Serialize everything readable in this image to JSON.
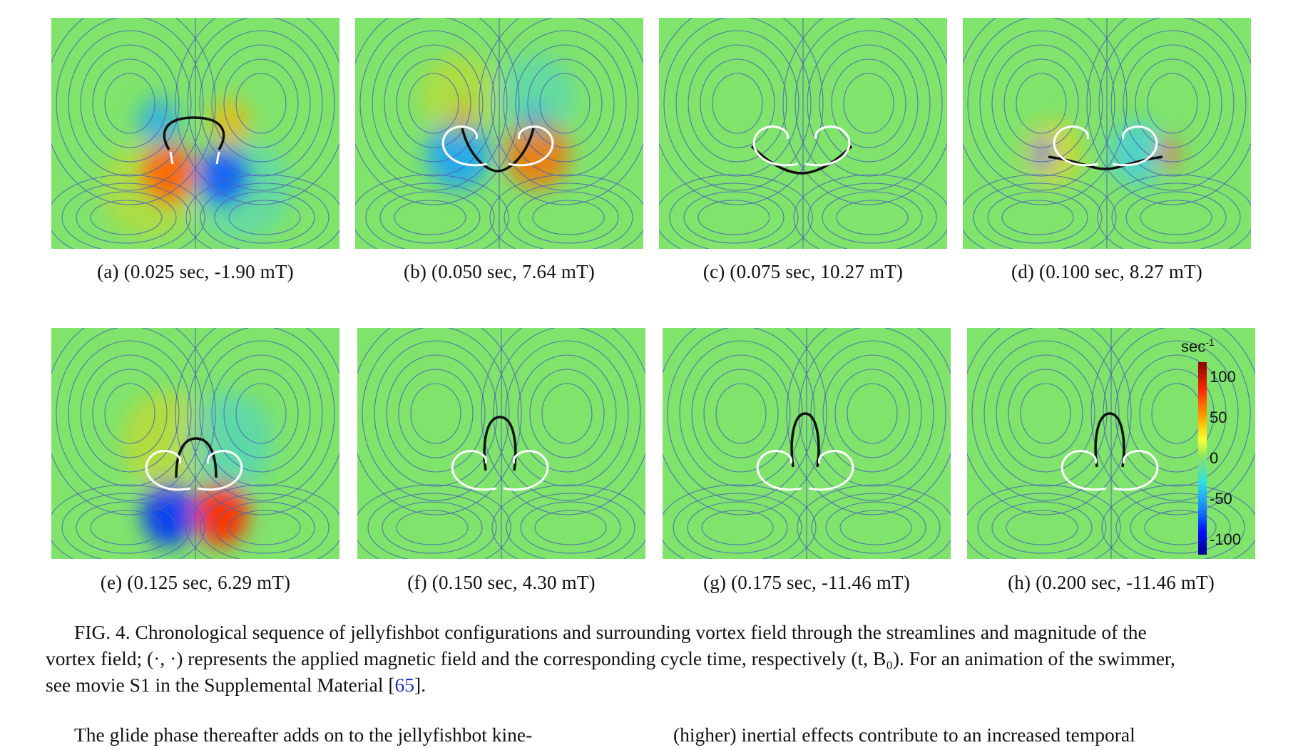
{
  "panels": [
    {
      "label": "(a) (0.025 sec, -1.90 mT)"
    },
    {
      "label": "(b) (0.050 sec, 7.64 mT)"
    },
    {
      "label": "(c) (0.075 sec, 10.27 mT)"
    },
    {
      "label": "(d) (0.100 sec, 8.27 mT)"
    },
    {
      "label": "(e) (0.125 sec, 6.29 mT)"
    },
    {
      "label": "(f) (0.150 sec, 4.30 mT)"
    },
    {
      "label": "(g) (0.175 sec, -11.46 mT)"
    },
    {
      "label": "(h) (0.200 sec, -11.46 mT)"
    }
  ],
  "colorbar": {
    "unit": "sec",
    "unit_exp": "-1",
    "ticks": [
      "100",
      "50",
      "0",
      "-50",
      "-100"
    ]
  },
  "caption": {
    "line1": "FIG. 4.  Chronological sequence of jellyfishbot configurations and surrounding vortex field through the streamlines and magnitude of the",
    "line2": "vortex field; (·, ·) represents the applied magnetic field and the corresponding cycle time, respectively (t, B₀). For an animation of the swimmer,",
    "line3_pre": "see movie S1 in the Supplemental Material [",
    "line3_ref": "65",
    "line3_post": "]."
  },
  "next_text": {
    "left": "The glide phase thereafter adds on to the jellyfishbot kine-",
    "right": "(higher) inertial effects contribute to an increased temporal"
  },
  "colors": {
    "field_background": "#7fe36c",
    "streamline": "#4a64b8",
    "body_black": "#111111",
    "trace_white": "#ffffff"
  }
}
